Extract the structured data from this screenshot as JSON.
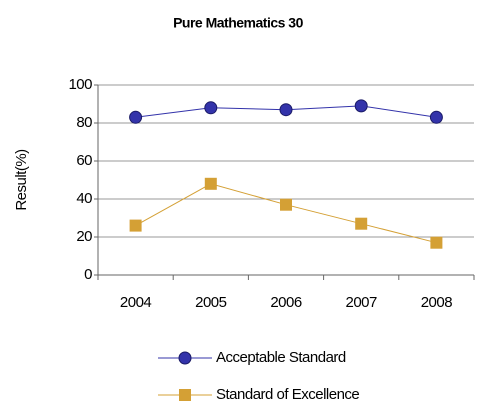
{
  "chart_data": {
    "type": "line",
    "title": "Pure Mathematics 30",
    "y_label": "Result(%)",
    "categories": [
      "2004",
      "2005",
      "2006",
      "2007",
      "2008"
    ],
    "series": [
      {
        "name": "Acceptable Standard",
        "color": "#3333aa",
        "marker": "circle",
        "values": [
          83,
          88,
          87,
          89,
          83
        ]
      },
      {
        "name": "Standard of Excellence",
        "color": "#d4a035",
        "marker": "square",
        "values": [
          26,
          48,
          37,
          27,
          17
        ]
      }
    ],
    "ylim": [
      0,
      100
    ],
    "yticks": [
      0,
      20,
      40,
      60,
      80,
      100
    ],
    "grid": true
  }
}
